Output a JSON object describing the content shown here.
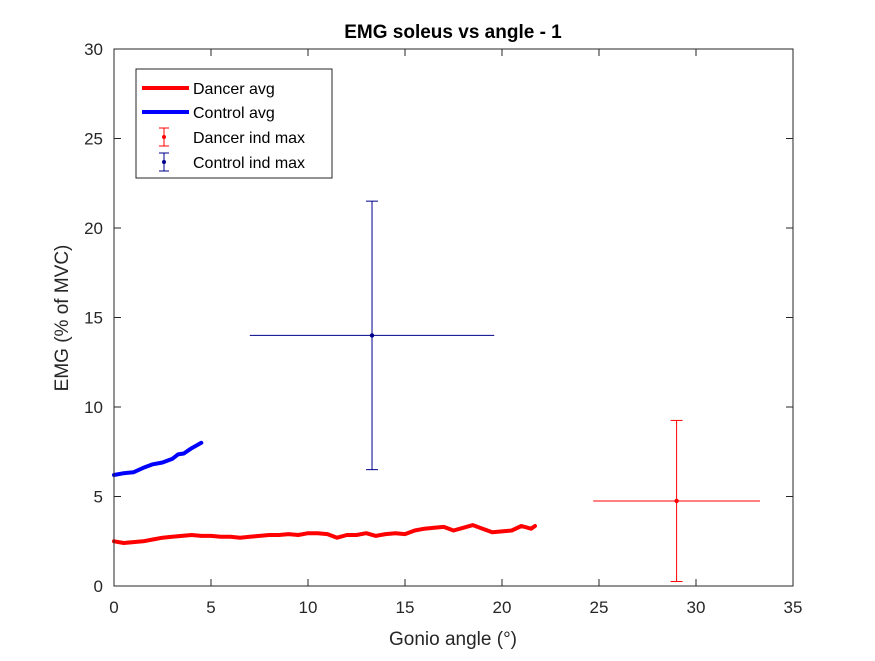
{
  "chart_data": {
    "type": "line",
    "title": "EMG soleus vs angle - 1",
    "xlabel": "Gonio angle (°)",
    "ylabel": "EMG (% of MVC)",
    "xlim": [
      0,
      35
    ],
    "ylim": [
      0,
      30
    ],
    "xticks": [
      "0",
      "5",
      "10",
      "15",
      "20",
      "25",
      "30",
      "35"
    ],
    "yticks": [
      "0",
      "5",
      "10",
      "15",
      "20",
      "25",
      "30"
    ],
    "grid": false,
    "legend_position": "top-left",
    "series": [
      {
        "name": "Dancer avg",
        "kind": "line",
        "color": "#ff0000",
        "x": [
          0,
          0.5,
          1,
          1.5,
          2,
          2.5,
          3,
          3.5,
          4,
          4.5,
          5,
          5.5,
          6,
          6.5,
          7,
          7.5,
          8,
          8.5,
          9,
          9.5,
          10,
          10.5,
          11,
          11.5,
          12,
          12.5,
          13,
          13.5,
          14,
          14.5,
          15,
          15.5,
          16,
          16.5,
          17,
          17.5,
          18,
          18.5,
          19,
          19.5,
          20,
          20.5,
          21,
          21.5,
          21.7
        ],
        "y": [
          2.5,
          2.4,
          2.45,
          2.5,
          2.6,
          2.7,
          2.75,
          2.8,
          2.85,
          2.8,
          2.8,
          2.75,
          2.75,
          2.7,
          2.75,
          2.8,
          2.85,
          2.85,
          2.9,
          2.85,
          2.95,
          2.95,
          2.9,
          2.7,
          2.85,
          2.85,
          2.95,
          2.8,
          2.9,
          2.95,
          2.9,
          3.1,
          3.2,
          3.25,
          3.3,
          3.1,
          3.25,
          3.4,
          3.2,
          3.0,
          3.05,
          3.1,
          3.35,
          3.2,
          3.35
        ]
      },
      {
        "name": "Control avg",
        "kind": "line",
        "color": "#0000ff",
        "x": [
          0,
          0.5,
          1,
          1.5,
          2,
          2.5,
          3,
          3.3,
          3.6,
          4,
          4.5
        ],
        "y": [
          6.2,
          6.3,
          6.35,
          6.6,
          6.8,
          6.9,
          7.1,
          7.35,
          7.4,
          7.7,
          8.0
        ]
      },
      {
        "name": "Dancer ind max",
        "kind": "errorbar",
        "color": "#ff0000",
        "x": 29,
        "y": 4.75,
        "xneg": 4.3,
        "xpos": 4.3,
        "yneg": 4.5,
        "ypos": 4.5
      },
      {
        "name": "Control ind max",
        "kind": "errorbar",
        "color": "#00008b",
        "x": 13.3,
        "y": 14,
        "xneg": 6.3,
        "xpos": 6.3,
        "yneg": 7.5,
        "ypos": 7.5
      }
    ]
  }
}
